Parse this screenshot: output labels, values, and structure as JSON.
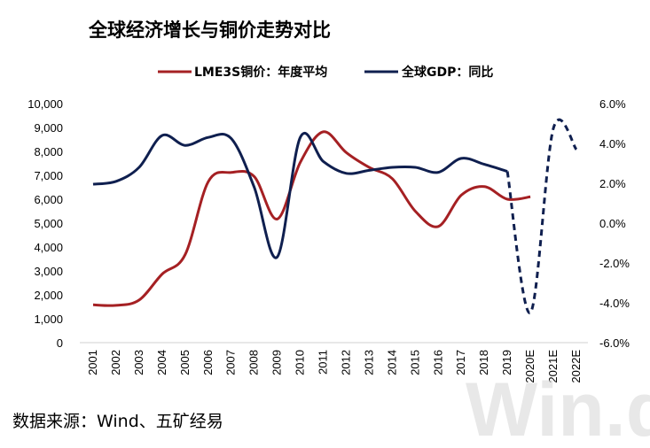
{
  "chart_data": {
    "type": "line",
    "title": "全球经济增长与铜价走势对比",
    "categories": [
      "2001",
      "2002",
      "2003",
      "2004",
      "2005",
      "2006",
      "2007",
      "2008",
      "2009",
      "2010",
      "2011",
      "2012",
      "2013",
      "2014",
      "2015",
      "2016",
      "2017",
      "2018",
      "2019",
      "2020E",
      "2021E",
      "2022E"
    ],
    "series": [
      {
        "name": "LME3S铜价：年度平均",
        "axis": "left",
        "color": "#a52023",
        "values": [
          1580,
          1560,
          1780,
          2870,
          3680,
          6730,
          7120,
          6950,
          5170,
          7540,
          8820,
          7950,
          7330,
          6860,
          5500,
          4860,
          6170,
          6530,
          6000,
          6100,
          null,
          null
        ]
      },
      {
        "name": "全球GDP：同比",
        "axis": "right",
        "color": "#0f1f4f",
        "values": [
          1.95,
          2.1,
          2.8,
          4.4,
          3.9,
          4.3,
          4.25,
          1.8,
          -1.7,
          4.3,
          3.1,
          2.5,
          2.65,
          2.8,
          2.8,
          2.55,
          3.25,
          2.95,
          2.6,
          -4.5,
          4.75,
          3.7
        ],
        "dashed_from": "2019"
      }
    ],
    "y_left": {
      "min": 0,
      "max": 10000,
      "ticks": [
        "0",
        "1,000",
        "2,000",
        "3,000",
        "4,000",
        "5,000",
        "6,000",
        "7,000",
        "8,000",
        "9,000",
        "10,000"
      ]
    },
    "y_right": {
      "min": -6,
      "max": 6,
      "ticks": [
        "-6.0%",
        "-4.0%",
        "-2.0%",
        "0.0%",
        "2.0%",
        "4.0%",
        "6.0%"
      ]
    },
    "legend_position": "top",
    "source": "数据来源：Wind、五矿经易",
    "watermark": "Win.d"
  }
}
